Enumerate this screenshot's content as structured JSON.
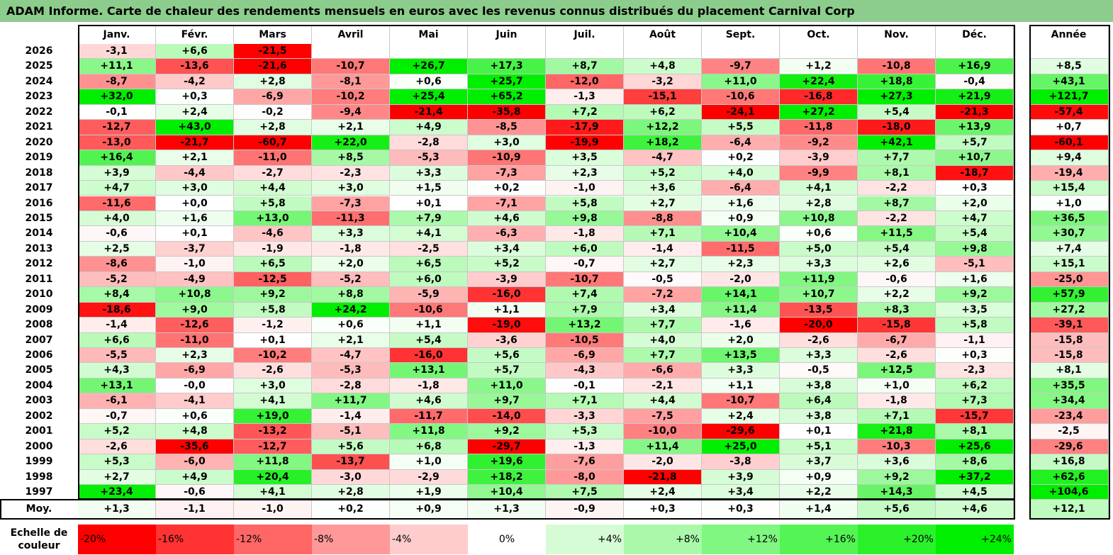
{
  "title": "ADAM Informe. Carte de chaleur des rendements mensuels en euros avec les revenus connus distribués du placement Carnival Corp",
  "chart_data": {
    "type": "heatmap",
    "columns": [
      "Janv.",
      "Févr.",
      "Mars",
      "Avril",
      "Mai",
      "Juin",
      "Juil.",
      "Août",
      "Sept.",
      "Oct.",
      "Nov.",
      "Déc."
    ],
    "annual_label": "Année",
    "average_label": "Moy.",
    "rows": [
      {
        "year": "2026",
        "values": [
          "-3,1",
          "+6,6",
          "-21,5",
          "",
          "",
          "",
          "",
          "",
          "",
          "",
          "",
          ""
        ],
        "annual": ""
      },
      {
        "year": "2025",
        "values": [
          "+11,1",
          "-13,6",
          "-21,6",
          "-10,7",
          "+26,7",
          "+17,3",
          "+8,7",
          "+4,8",
          "-9,7",
          "+1,2",
          "-10,8",
          "+16,9"
        ],
        "annual": "+8,5"
      },
      {
        "year": "2024",
        "values": [
          "-8,7",
          "-4,2",
          "+2,8",
          "-8,1",
          "+0,6",
          "+25,7",
          "-12,0",
          "-3,2",
          "+11,0",
          "+22,4",
          "+18,8",
          "-0,4"
        ],
        "annual": "+43,1"
      },
      {
        "year": "2023",
        "values": [
          "+32,0",
          "+0,3",
          "-6,9",
          "-10,2",
          "+25,4",
          "+65,2",
          "-1,3",
          "-15,1",
          "-10,6",
          "-16,8",
          "+27,3",
          "+21,9"
        ],
        "annual": "+121,7"
      },
      {
        "year": "2022",
        "values": [
          "-0,1",
          "+2,4",
          "-0,2",
          "-9,4",
          "-21,4",
          "-35,8",
          "+7,2",
          "+6,2",
          "-24,1",
          "+27,2",
          "+5,4",
          "-21,3"
        ],
        "annual": "-57,4"
      },
      {
        "year": "2021",
        "values": [
          "-12,7",
          "+43,0",
          "+2,8",
          "+2,1",
          "+4,9",
          "-8,5",
          "-17,9",
          "+12,2",
          "+5,5",
          "-11,8",
          "-18,0",
          "+13,9"
        ],
        "annual": "+0,7"
      },
      {
        "year": "2020",
        "values": [
          "-13,0",
          "-21,7",
          "-60,7",
          "+22,0",
          "-2,8",
          "+3,0",
          "-19,9",
          "+18,2",
          "-6,4",
          "-9,2",
          "+42,1",
          "+5,7"
        ],
        "annual": "-60,1"
      },
      {
        "year": "2019",
        "values": [
          "+16,4",
          "+2,1",
          "-11,0",
          "+8,5",
          "-5,3",
          "-10,9",
          "+3,5",
          "-4,7",
          "+0,2",
          "-3,9",
          "+7,7",
          "+10,7"
        ],
        "annual": "+9,4"
      },
      {
        "year": "2018",
        "values": [
          "+3,9",
          "-4,4",
          "-2,7",
          "-2,3",
          "+3,3",
          "-7,3",
          "+2,3",
          "+5,2",
          "+4,0",
          "-9,9",
          "+8,1",
          "-18,7"
        ],
        "annual": "-19,4"
      },
      {
        "year": "2017",
        "values": [
          "+4,7",
          "+3,0",
          "+4,4",
          "+3,0",
          "+1,5",
          "+0,2",
          "-1,0",
          "+3,6",
          "-6,4",
          "+4,1",
          "-2,2",
          "+0,3"
        ],
        "annual": "+15,4"
      },
      {
        "year": "2016",
        "values": [
          "-11,6",
          "+0,0",
          "+5,8",
          "-7,3",
          "+0,1",
          "-7,1",
          "+5,8",
          "+2,7",
          "+1,6",
          "+2,8",
          "+8,7",
          "+2,0"
        ],
        "annual": "+1,0"
      },
      {
        "year": "2015",
        "values": [
          "+4,0",
          "+1,6",
          "+13,0",
          "-11,3",
          "+7,9",
          "+4,6",
          "+9,8",
          "-8,8",
          "+0,9",
          "+10,8",
          "-2,2",
          "+4,7"
        ],
        "annual": "+36,5"
      },
      {
        "year": "2014",
        "values": [
          "-0,6",
          "+0,1",
          "-4,6",
          "+3,3",
          "+4,1",
          "-6,3",
          "-1,8",
          "+7,1",
          "+10,4",
          "+0,6",
          "+11,5",
          "+5,4"
        ],
        "annual": "+30,7"
      },
      {
        "year": "2013",
        "values": [
          "+2,5",
          "-3,7",
          "-1,9",
          "-1,8",
          "-2,5",
          "+3,4",
          "+6,0",
          "-1,4",
          "-11,5",
          "+5,0",
          "+5,4",
          "+9,8"
        ],
        "annual": "+7,4"
      },
      {
        "year": "2012",
        "values": [
          "-8,6",
          "-1,0",
          "+6,5",
          "+2,0",
          "+6,5",
          "+5,2",
          "-0,7",
          "+2,7",
          "+2,3",
          "+3,3",
          "+2,6",
          "-5,1"
        ],
        "annual": "+15,1"
      },
      {
        "year": "2011",
        "values": [
          "-5,2",
          "-4,9",
          "-12,5",
          "-5,2",
          "+6,0",
          "-3,9",
          "-10,7",
          "-0,5",
          "-2,0",
          "+11,9",
          "-0,6",
          "+1,6"
        ],
        "annual": "-25,0"
      },
      {
        "year": "2010",
        "values": [
          "+8,4",
          "+10,8",
          "+9,2",
          "+8,8",
          "-5,9",
          "-16,0",
          "+7,4",
          "-7,2",
          "+14,1",
          "+10,7",
          "+2,2",
          "+9,2"
        ],
        "annual": "+57,9"
      },
      {
        "year": "2009",
        "values": [
          "-18,6",
          "+9,0",
          "+5,8",
          "+24,2",
          "-10,6",
          "+1,1",
          "+7,9",
          "+3,4",
          "+11,4",
          "-13,5",
          "+8,3",
          "+3,5"
        ],
        "annual": "+27,2"
      },
      {
        "year": "2008",
        "values": [
          "-1,4",
          "-12,6",
          "-1,2",
          "+0,6",
          "+1,1",
          "-19,0",
          "+13,2",
          "+7,7",
          "-1,6",
          "-20,0",
          "-15,8",
          "+5,8"
        ],
        "annual": "-39,1"
      },
      {
        "year": "2007",
        "values": [
          "+6,6",
          "-11,0",
          "+0,1",
          "+2,1",
          "+5,4",
          "-3,6",
          "-10,5",
          "+4,0",
          "+2,0",
          "-2,6",
          "-6,7",
          "-1,1"
        ],
        "annual": "-15,8"
      },
      {
        "year": "2006",
        "values": [
          "-5,5",
          "+2,3",
          "-10,2",
          "-4,7",
          "-16,0",
          "+5,6",
          "-6,9",
          "+7,7",
          "+13,5",
          "+3,3",
          "-2,6",
          "+0,3"
        ],
        "annual": "-15,8"
      },
      {
        "year": "2005",
        "values": [
          "+4,3",
          "-6,9",
          "-2,6",
          "-5,3",
          "+13,1",
          "+5,7",
          "-4,3",
          "-6,6",
          "+3,3",
          "-0,5",
          "+12,5",
          "-2,3"
        ],
        "annual": "+8,1"
      },
      {
        "year": "2004",
        "values": [
          "+13,1",
          "-0,0",
          "+3,0",
          "-2,8",
          "-1,8",
          "+11,0",
          "-0,1",
          "-2,1",
          "+1,1",
          "+3,8",
          "+1,0",
          "+6,2"
        ],
        "annual": "+35,5"
      },
      {
        "year": "2003",
        "values": [
          "-6,1",
          "-4,1",
          "+4,1",
          "+11,7",
          "+4,6",
          "+9,7",
          "+7,1",
          "+4,4",
          "-10,7",
          "+6,4",
          "-1,8",
          "+7,3"
        ],
        "annual": "+34,4"
      },
      {
        "year": "2002",
        "values": [
          "-0,7",
          "+0,6",
          "+19,0",
          "-1,4",
          "-11,7",
          "-14,0",
          "-3,3",
          "-7,5",
          "+2,4",
          "+3,8",
          "+7,1",
          "-15,7"
        ],
        "annual": "-23,4"
      },
      {
        "year": "2001",
        "values": [
          "+5,2",
          "+4,8",
          "-13,2",
          "-5,1",
          "+11,8",
          "+9,2",
          "+5,3",
          "-10,0",
          "-29,6",
          "+0,1",
          "+21,8",
          "+8,1"
        ],
        "annual": "-2,5"
      },
      {
        "year": "2000",
        "values": [
          "-2,6",
          "-35,6",
          "-12,7",
          "+5,6",
          "+6,8",
          "-29,7",
          "-1,3",
          "+11,4",
          "+25,0",
          "+5,1",
          "-10,3",
          "+25,6"
        ],
        "annual": "-29,6"
      },
      {
        "year": "1999",
        "values": [
          "+5,3",
          "-6,0",
          "+11,8",
          "-13,7",
          "+1,0",
          "+19,6",
          "-7,6",
          "-2,0",
          "-3,8",
          "+3,7",
          "+3,6",
          "+8,6"
        ],
        "annual": "+16,8"
      },
      {
        "year": "1998",
        "values": [
          "+2,7",
          "+4,9",
          "+20,4",
          "-3,0",
          "-2,9",
          "+18,2",
          "-8,0",
          "-21,8",
          "+3,9",
          "+0,9",
          "+9,2",
          "+37,2"
        ],
        "annual": "+62,6"
      },
      {
        "year": "1997",
        "values": [
          "+23,4",
          "-0,6",
          "+4,1",
          "+2,8",
          "+1,9",
          "+10,4",
          "+7,5",
          "+2,4",
          "+3,4",
          "+2,2",
          "+14,3",
          "+4,5"
        ],
        "annual": "+104,6"
      }
    ],
    "average": {
      "values": [
        "+1,3",
        "-1,1",
        "-1,0",
        "+0,2",
        "+0,9",
        "+1,3",
        "-0,9",
        "+0,3",
        "+0,3",
        "+1,4",
        "+5,6",
        "+4,6"
      ],
      "annual": "+12,1"
    },
    "color_scale": {
      "label_line1": "Echelle de",
      "label_line2": "couleur",
      "steps": [
        "-20%",
        "-16%",
        "-12%",
        "-8%",
        "-4%",
        "0%",
        "+4%",
        "+8%",
        "+12%",
        "+16%",
        "+20%",
        "+24%"
      ],
      "negative_color": "#ff0000",
      "neutral_color": "#ffffff",
      "positive_color": "#00ee00"
    }
  }
}
